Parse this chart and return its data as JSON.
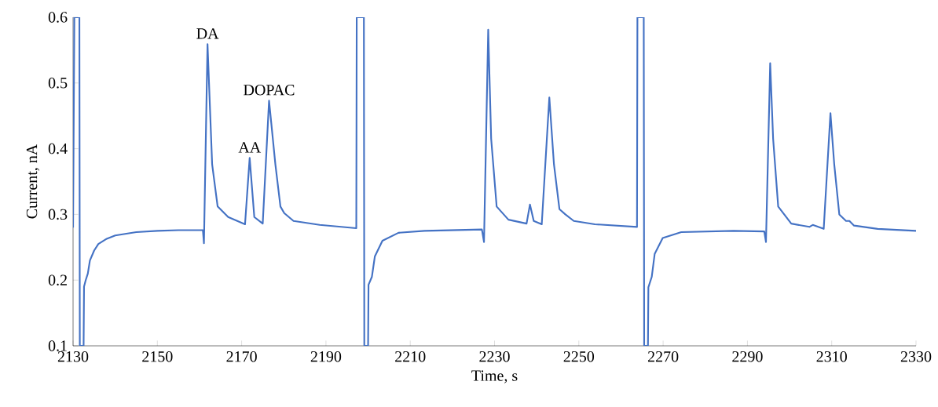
{
  "chart_data": {
    "type": "line",
    "xlabel": "Time, s",
    "ylabel": "Current, nA",
    "xlim": [
      2130,
      2330
    ],
    "xticks": [
      2130,
      2150,
      2170,
      2190,
      2210,
      2230,
      2250,
      2270,
      2290,
      2310,
      2330
    ],
    "ylim": [
      0.1,
      0.6
    ],
    "yticks": [
      0.1,
      0.2,
      0.3,
      0.4,
      0.5,
      0.6
    ],
    "grid": false,
    "marker": "none",
    "line_style": "solid",
    "annotations": [
      {
        "text": "DA",
        "x": 2161.9,
        "y": 0.559
      },
      {
        "text": "AA",
        "x": 2171.9,
        "y": 0.386
      },
      {
        "text": "DOPAC",
        "x": 2176.5,
        "y": 0.473
      }
    ],
    "series": [
      {
        "color": "#4472c4",
        "x": [
          2130,
          2130.3,
          2131.5,
          2131.6,
          2132.5,
          2132.6,
          2133.0,
          2133.5,
          2134,
          2135,
          2136,
          2138,
          2140,
          2145,
          2150,
          2155,
          2160.8,
          2161.05,
          2161.9,
          2163.0,
          2164.3,
          2166.8,
          2170.8,
          2171.9,
          2173.0,
          2175.0,
          2176.5,
          2178.0,
          2179.2,
          2180.1,
          2182.3,
          2188.5,
          2197.2,
          2197.3,
          2199.0,
          2199.1,
          2200.0,
          2200.1,
          2200.9,
          2201.6,
          2203.4,
          2207.2,
          2213.4,
          2227.0,
          2227.5,
          2228.5,
          2229.2,
          2230.5,
          2233.3,
          2237.6,
          2238.4,
          2239.3,
          2241.2,
          2243.0,
          2244.1,
          2245.4,
          2246.8,
          2248.8,
          2253.8,
          2263.8,
          2263.9,
          2265.4,
          2265.5,
          2266.4,
          2266.5,
          2267.3,
          2268.0,
          2269.9,
          2274.3,
          2286.7,
          2294.0,
          2294.4,
          2295.4,
          2296.1,
          2297.3,
          2300.4,
          2304.7,
          2305.5,
          2308.1,
          2309.7,
          2310.6,
          2311.8,
          2313.4,
          2314.2,
          2315.3,
          2320.9,
          2330
        ],
        "values": [
          0.28,
          0.6,
          0.6,
          0.1,
          0.1,
          0.19,
          0.2,
          0.21,
          0.23,
          0.245,
          0.255,
          0.263,
          0.268,
          0.273,
          0.275,
          0.276,
          0.276,
          0.256,
          0.559,
          0.376,
          0.312,
          0.296,
          0.285,
          0.386,
          0.296,
          0.286,
          0.473,
          0.376,
          0.312,
          0.302,
          0.29,
          0.284,
          0.279,
          0.6,
          0.6,
          0.1,
          0.1,
          0.193,
          0.205,
          0.236,
          0.26,
          0.272,
          0.275,
          0.277,
          0.258,
          0.581,
          0.415,
          0.312,
          0.292,
          0.286,
          0.315,
          0.29,
          0.285,
          0.478,
          0.376,
          0.308,
          0.3,
          0.29,
          0.285,
          0.281,
          0.6,
          0.6,
          0.1,
          0.1,
          0.189,
          0.205,
          0.24,
          0.264,
          0.273,
          0.275,
          0.274,
          0.258,
          0.53,
          0.415,
          0.312,
          0.286,
          0.281,
          0.284,
          0.278,
          0.454,
          0.376,
          0.3,
          0.29,
          0.29,
          0.283,
          0.278,
          0.275
        ]
      }
    ]
  }
}
